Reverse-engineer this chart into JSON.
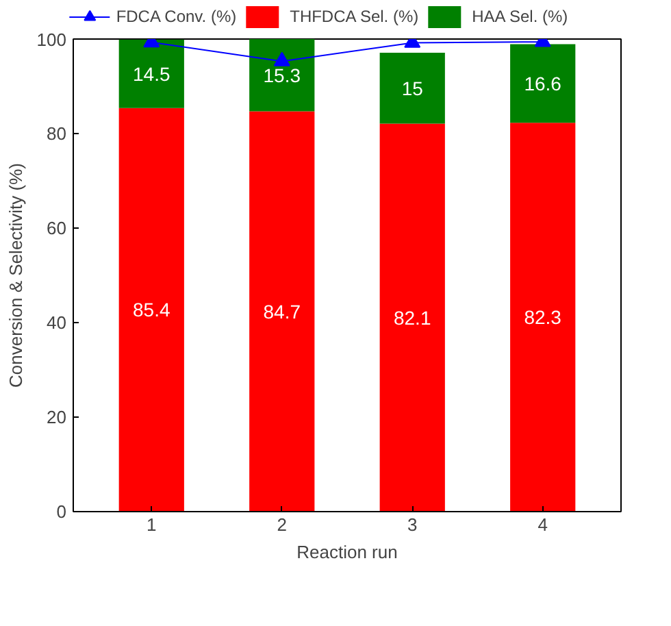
{
  "chart_data": {
    "type": "bar",
    "stacked": true,
    "xlabel": "Reaction run",
    "ylabel": "Conversion & Selectivity (%)",
    "categories": [
      "1",
      "2",
      "3",
      "4"
    ],
    "series": [
      {
        "name": "THFDCA Sel. (%)",
        "color": "#ff0000",
        "values": [
          85.4,
          84.7,
          82.1,
          82.3
        ],
        "value_labels": [
          "85.4",
          "84.7",
          "82.1",
          "82.3"
        ]
      },
      {
        "name": "HAA Sel. (%)",
        "color": "#008000",
        "values": [
          14.5,
          15.3,
          15,
          16.6
        ],
        "value_labels": [
          "14.5",
          "15.3",
          "15",
          "16.6"
        ]
      },
      {
        "name": "FDCA Conv. (%)",
        "type": "line",
        "color": "#0000ff",
        "marker": "triangle",
        "values": [
          99.3,
          95.3,
          99.2,
          99.4
        ]
      }
    ],
    "ylim": [
      0,
      100
    ],
    "yticks": [
      0,
      20,
      40,
      60,
      80,
      100
    ],
    "grid": false,
    "legend": "top"
  }
}
